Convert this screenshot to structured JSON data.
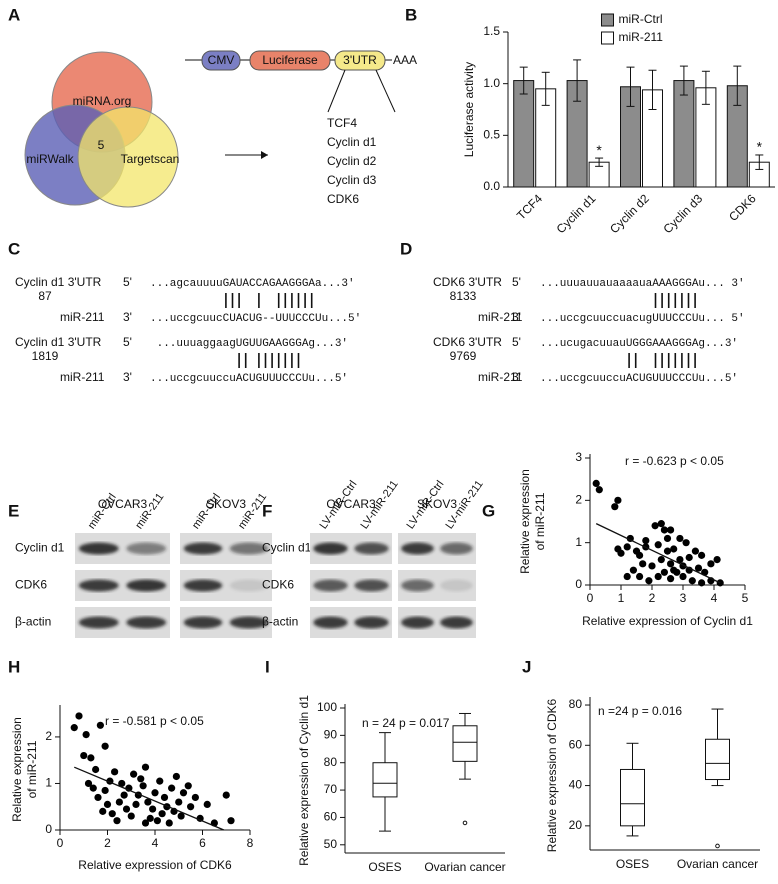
{
  "panel_labels": [
    "A",
    "B",
    "C",
    "D",
    "E",
    "F",
    "G",
    "H",
    "I",
    "J"
  ],
  "panel_a": {
    "venn": {
      "sets": [
        "miRNA.org",
        "miRWalk",
        "Targetscan"
      ],
      "overlap": 5
    },
    "construct": [
      "CMV",
      "Luciferase",
      "3'UTR",
      "AAA"
    ],
    "targets": [
      "TCF4",
      "Cyclin d1",
      "Cyclin d2",
      "Cyclin d3",
      "CDK6"
    ]
  },
  "panel_c": {
    "alignments": [
      {
        "utr": "Cyclin d1 3'UTR",
        "position": 87,
        "utr_end": "5'",
        "utr_seq": "...agcauuuuGAUACCAGAAGGGAa...3'",
        "mir": "miR-211",
        "mir_end": "3'",
        "mir_seq": "...uccgcuucCUACUG--UUUCCCUu...5'"
      },
      {
        "utr": "Cyclin d1 3'UTR",
        "position": 1819,
        "utr_end": "5'",
        "utr_seq": "...uuuaggaagUGUUGAAGGGAg...3'",
        "mir": "miR-211",
        "mir_end": "3'",
        "mir_seq": "...uccgcuuccuACUGUUUCCCUu...5'"
      }
    ]
  },
  "panel_d": {
    "alignments": [
      {
        "utr": "CDK6 3'UTR",
        "position": 8133,
        "utr_end": "5'",
        "utr_seq": "...uuuauuauaaaauaAAAGGGAu...   3'",
        "mir": "miR-211",
        "mir_end": "3'",
        "mir_seq": "...uccgcuuccuacugUUUCCCUu...   5'"
      },
      {
        "utr": "CDK6 3'UTR",
        "position": 9769,
        "utr_end": "5'",
        "utr_seq": "...ucugacuuauUGGGAAAGGGAg...3'",
        "mir": "miR-211",
        "mir_end": "3'",
        "mir_seq": "...uccgcuuccuACUGUUUCCCUu...5'"
      }
    ]
  },
  "panel_e": {
    "cell_lines": [
      "OVCAR3",
      "SKOV3"
    ],
    "lanes": [
      "miR-Ctrl",
      "miR-211",
      "miR-Ctrl",
      "miR-211"
    ],
    "rows": [
      "Cyclin d1",
      "CDK6",
      "β-actin"
    ]
  },
  "panel_f": {
    "cell_lines": [
      "OVCAR3",
      "SKOV3"
    ],
    "lanes": [
      "LV-miR-Ctrl",
      "LV-miR-211",
      "LV-miR-Ctrl",
      "LV-miR-211"
    ],
    "rows": [
      "Cyclin d1",
      "CDK6",
      "β-actin"
    ]
  },
  "chart_data": [
    {
      "type": "bar",
      "y_label": "Luciferase activity",
      "categories": [
        "TCF4",
        "Cyclin d1",
        "Cyclin d2",
        "Cyclin d3",
        "CDK6"
      ],
      "series": [
        {
          "name": "miR-Ctrl",
          "color": "#8c8c8c",
          "values": [
            1.03,
            1.03,
            0.97,
            1.03,
            0.98
          ],
          "errors": [
            0.13,
            0.2,
            0.19,
            0.14,
            0.19
          ]
        },
        {
          "name": "miR-211",
          "color": "#ffffff",
          "values": [
            0.95,
            0.24,
            0.94,
            0.96,
            0.24
          ],
          "errors": [
            0.16,
            0.04,
            0.19,
            0.16,
            0.07
          ]
        }
      ],
      "annotations": [
        {
          "text": "*",
          "category": "Cyclin d1"
        },
        {
          "text": "*",
          "category": "CDK6"
        }
      ],
      "ylim": [
        0,
        1.5
      ],
      "yticks": [
        {
          "value": 0,
          "label": "0.0"
        },
        0.5,
        {
          "value": 1,
          "label": "1.0"
        },
        1.5
      ],
      "legend": "upper center"
    },
    {
      "type": "scatter",
      "annotation": "r = -0.623 p < 0.05",
      "x_label": "Relative expression of Cyclin d1",
      "y_label": [
        "Relative expression",
        "of miR-211"
      ],
      "x": [
        0.2,
        0.3,
        0.9,
        0.8,
        1.3,
        1.2,
        0.9,
        1.0,
        1.5,
        1.6,
        1.8,
        1.7,
        1.4,
        1.2,
        1.6,
        1.8,
        2.1,
        2.3,
        2.4,
        2.5,
        2.6,
        2.9,
        3.1,
        2.2,
        2.5,
        2.7,
        2.3,
        2.6,
        2.9,
        3.2,
        3.4,
        3.6,
        2.2,
        2.4,
        2.6,
        2.8,
        3.0,
        3.2,
        3.5,
        3.7,
        3.9,
        4.1,
        3.3,
        3.6,
        3.9,
        4.2,
        2.0,
        2.7,
        3.0,
        1.9
      ],
      "y": [
        2.4,
        2.25,
        2.0,
        1.85,
        1.1,
        0.9,
        0.85,
        0.75,
        0.8,
        0.7,
        1.05,
        0.5,
        0.35,
        0.2,
        0.2,
        0.9,
        1.4,
        1.45,
        1.3,
        1.1,
        1.3,
        1.1,
        1.0,
        0.95,
        0.8,
        0.85,
        0.6,
        0.5,
        0.6,
        0.65,
        0.8,
        0.7,
        0.2,
        0.3,
        0.15,
        0.3,
        0.2,
        0.35,
        0.4,
        0.3,
        0.5,
        0.6,
        0.1,
        0.05,
        0.1,
        0.05,
        0.45,
        0.35,
        0.45,
        0.1
      ],
      "trendline": {
        "x": [
          0.2,
          4.2
        ],
        "y": [
          1.45,
          0.05
        ]
      },
      "color": "#000000",
      "xlim": [
        0,
        5
      ],
      "xticks": [
        0,
        1,
        2,
        3,
        4,
        5
      ],
      "ylim": [
        0,
        3
      ],
      "yticks": [
        0,
        1,
        2,
        3
      ]
    },
    {
      "type": "scatter",
      "annotation": "r = -0.581 p < 0.05",
      "x_label": "Relative expression of CDK6",
      "y_label": [
        "Relative expression",
        "of miR-211"
      ],
      "x": [
        0.6,
        0.8,
        1.1,
        1.3,
        1.7,
        1.9,
        1.5,
        1.2,
        1.4,
        1.6,
        1.9,
        2.1,
        2.3,
        2.0,
        1.8,
        2.2,
        2.5,
        2.7,
        2.9,
        2.4,
        2.8,
        3.0,
        3.2,
        3.3,
        3.5,
        3.4,
        3.1,
        3.7,
        3.9,
        4.0,
        4.2,
        4.4,
        4.5,
        3.6,
        3.8,
        4.1,
        4.3,
        4.6,
        4.8,
        5.0,
        5.2,
        5.4,
        4.9,
        5.1,
        5.5,
        5.7,
        5.9,
        6.2,
        6.5,
        7.0,
        7.2,
        2.6,
        3.6,
        4.7,
        1.0
      ],
      "y": [
        2.2,
        2.45,
        2.05,
        1.55,
        2.25,
        1.8,
        1.3,
        1.0,
        0.9,
        0.7,
        0.85,
        1.05,
        1.25,
        0.55,
        0.4,
        0.35,
        0.6,
        0.75,
        0.9,
        0.2,
        0.45,
        0.3,
        0.55,
        0.75,
        0.95,
        1.1,
        1.2,
        0.6,
        0.45,
        0.8,
        1.05,
        0.7,
        0.5,
        0.15,
        0.25,
        0.2,
        0.35,
        0.15,
        0.4,
        0.6,
        0.8,
        0.95,
        1.15,
        0.3,
        0.5,
        0.7,
        0.25,
        0.55,
        0.15,
        0.75,
        0.2,
        1.0,
        1.35,
        0.9,
        1.6
      ],
      "trendline": {
        "x": [
          0.6,
          6.9
        ],
        "y": [
          1.35,
          0
        ]
      },
      "color": "#000000",
      "xlim": [
        0,
        8
      ],
      "xticks": [
        0,
        2,
        4,
        6,
        8
      ],
      "ylim": [
        0,
        2.6
      ],
      "yticks": [
        0,
        1,
        2
      ]
    },
    {
      "type": "box",
      "annotation": "n = 24 p = 0.017",
      "y_label": "Relative expression of Cyclin d1",
      "categories": [
        "OSES",
        "Ovarian cancer"
      ],
      "boxes": [
        {
          "min": 55,
          "q1": 67.5,
          "median": 72.5,
          "q3": 80,
          "max": 91
        },
        {
          "min": 74,
          "q1": 80.5,
          "median": 87.5,
          "q3": 93.5,
          "max": 98,
          "outliers": [
            58
          ]
        }
      ],
      "ylim": [
        47,
        100
      ],
      "yticks": [
        50,
        60,
        70,
        80,
        90,
        100
      ]
    },
    {
      "type": "box",
      "annotation": "n =24 p = 0.016",
      "y_label": "Relative expression of CDK6",
      "categories": [
        "OSES",
        "Ovarian cancer"
      ],
      "boxes": [
        {
          "min": 15,
          "q1": 20,
          "median": 31,
          "q3": 48,
          "max": 61
        },
        {
          "min": 40,
          "q1": 43,
          "median": 51,
          "q3": 63,
          "max": 78,
          "outliers": [
            10
          ]
        }
      ],
      "ylim": [
        8,
        82
      ],
      "yticks": [
        20,
        40,
        60,
        80
      ]
    }
  ]
}
